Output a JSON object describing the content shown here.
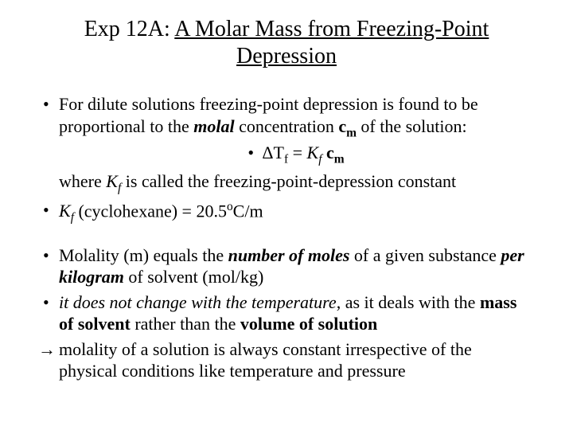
{
  "title": {
    "prefix": "Exp 12A: ",
    "underlined": "A Molar Mass from Freezing-Point Depression"
  },
  "block1": {
    "line1_a": "For dilute solutions freezing-point depression is found to be proportional to the ",
    "line1_b_bi": "molal",
    "line1_c": " concentration ",
    "line1_d_bold": "c",
    "line1_e_sub_bold": "m",
    "line1_f": " of the solution:",
    "eq_a": "ΔT",
    "eq_b_sub": "f",
    "eq_c": " = ",
    "eq_d_ital": "K",
    "eq_e_sub_ital": "f",
    "eq_f": " ",
    "eq_g_bold": "c",
    "eq_h_sub_bold": "m",
    "where_a": "where ",
    "where_b_ital": "K",
    "where_c_sub_ital": "f",
    "where_d": " is called the freezing-point-depression constant",
    "line2_a_ital": "K",
    "line2_b_sub_ital": "f",
    "line2_c": " (cyclohexane) = 20.5",
    "line2_d_sup": "o",
    "line2_e": "C/m"
  },
  "block2": {
    "line1_a": "Molality (m) equals the ",
    "line1_b_bi": "number of moles",
    "line1_c": " of a given substance ",
    "line1_d_bi": "per kilogram",
    "line1_e": " of solvent (mol/kg)",
    "line2_a_ital": "it does not change with the temperature",
    "line2_b": ", as it deals with the ",
    "line2_c_bold": "mass of solvent",
    "line2_d": " rather than the ",
    "line2_e_bold": "volume of solution",
    "line3": "molality of a solution is always constant irrespective of the physical conditions like temperature and pressure"
  },
  "style": {
    "background": "#ffffff",
    "text_color": "#000000",
    "title_fontsize": 28,
    "body_fontsize": 22,
    "font_family": "Times New Roman"
  }
}
